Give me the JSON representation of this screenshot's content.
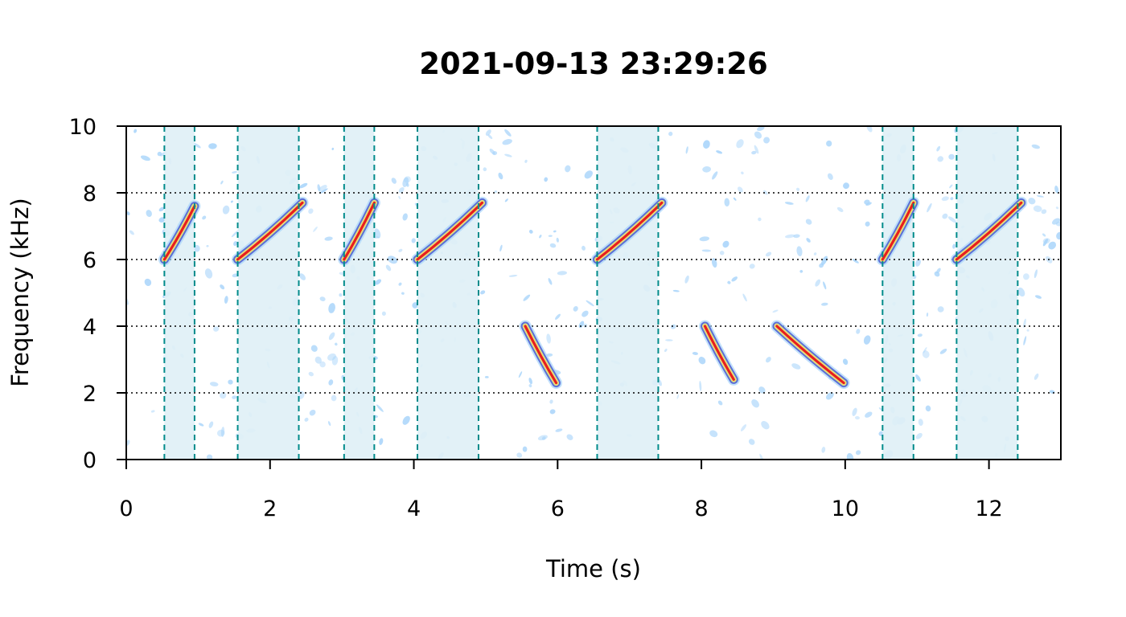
{
  "chart_data": {
    "type": "spectrogram",
    "title": "2021-09-13 23:29:26",
    "xlabel": "Time (s)",
    "ylabel": "Frequency (kHz)",
    "xlim": [
      0,
      13
    ],
    "ylim": [
      0,
      10
    ],
    "x_ticks": [
      0,
      2,
      4,
      6,
      8,
      10,
      12
    ],
    "y_ticks": [
      0,
      2,
      4,
      6,
      8,
      10
    ],
    "horizontal_reference_lines_khz": [
      2,
      4,
      6,
      8
    ],
    "highlighted_intervals_s": [
      [
        0.53,
        0.95
      ],
      [
        1.55,
        2.4
      ],
      [
        3.03,
        3.45
      ],
      [
        4.05,
        4.9
      ],
      [
        6.55,
        7.4
      ],
      [
        10.52,
        10.95
      ],
      [
        11.55,
        12.4
      ]
    ],
    "calls": [
      {
        "t_start": 0.53,
        "t_end": 0.95,
        "f_start_khz": 6.0,
        "f_end_khz": 7.6
      },
      {
        "t_start": 1.55,
        "t_end": 2.45,
        "f_start_khz": 6.0,
        "f_end_khz": 7.7
      },
      {
        "t_start": 3.03,
        "t_end": 3.45,
        "f_start_khz": 6.0,
        "f_end_khz": 7.7
      },
      {
        "t_start": 4.05,
        "t_end": 4.95,
        "f_start_khz": 6.0,
        "f_end_khz": 7.7
      },
      {
        "t_start": 5.55,
        "t_end": 5.98,
        "f_start_khz": 4.0,
        "f_end_khz": 2.3
      },
      {
        "t_start": 6.55,
        "t_end": 7.45,
        "f_start_khz": 6.0,
        "f_end_khz": 7.7
      },
      {
        "t_start": 8.05,
        "t_end": 8.45,
        "f_start_khz": 4.0,
        "f_end_khz": 2.4
      },
      {
        "t_start": 9.05,
        "t_end": 9.98,
        "f_start_khz": 4.0,
        "f_end_khz": 2.3
      },
      {
        "t_start": 10.52,
        "t_end": 10.95,
        "f_start_khz": 6.0,
        "f_end_khz": 7.7
      },
      {
        "t_start": 11.55,
        "t_end": 12.45,
        "f_start_khz": 6.0,
        "f_end_khz": 7.7
      }
    ],
    "colors": {
      "interval_fill": "#dff0f6",
      "interval_line": "#008b8b",
      "noise": "#a8d4fa",
      "call_edge": "#5b6fd6",
      "call_mid": "#e8e07a",
      "call_core": "#e81e1e",
      "grid_line": "#000000"
    },
    "grid": "dotted horizontal lines at 2, 4, 6, 8 kHz",
    "legend": "none"
  }
}
